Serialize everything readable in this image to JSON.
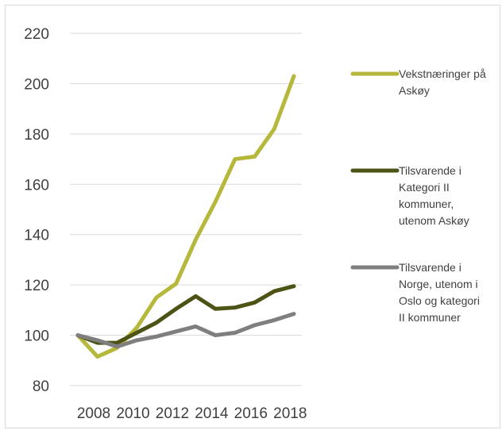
{
  "chart_data": {
    "type": "line",
    "title": "",
    "xlabel": "",
    "ylabel": "",
    "ylim": [
      80,
      220
    ],
    "yticks": [
      80,
      100,
      120,
      140,
      160,
      180,
      200,
      220
    ],
    "xtick_labels": [
      "2008",
      "2010",
      "2012",
      "2014",
      "2016",
      "2018"
    ],
    "x": [
      2008,
      2009,
      2010,
      2011,
      2012,
      2013,
      2014,
      2015,
      2016,
      2017,
      2018,
      2019
    ],
    "grid": true,
    "legend_position": "right",
    "series": [
      {
        "name": "Vekstnæringer på Askøy",
        "legend_lines": [
          "Vekstnæringer på",
          "Askøy"
        ],
        "color": "#b5b83a",
        "values": [
          100,
          91.5,
          95,
          103,
          115,
          120.5,
          138,
          153,
          170,
          171,
          182,
          203
        ]
      },
      {
        "name": "Tilsvarende i Kategori II kommuner, utenom Askøy",
        "legend_lines": [
          "Tilsvarende i",
          "Kategori II",
          "kommuner,",
          "utenom Askøy"
        ],
        "color": "#4d5215",
        "values": [
          100,
          97,
          97,
          101,
          105,
          110.5,
          115.5,
          110.5,
          111,
          113,
          117.5,
          119.5
        ]
      },
      {
        "name": "Tilsvarende i Norge, utenom i Oslo og kategori II kommuner",
        "legend_lines": [
          "Tilsvarende i",
          "Norge, utenom i",
          "Oslo og kategori",
          "II kommuner"
        ],
        "color": "#7f7f7f",
        "values": [
          100,
          98,
          95.5,
          98,
          99.5,
          101.5,
          103.5,
          100,
          101,
          104,
          106,
          108.5
        ]
      }
    ]
  }
}
